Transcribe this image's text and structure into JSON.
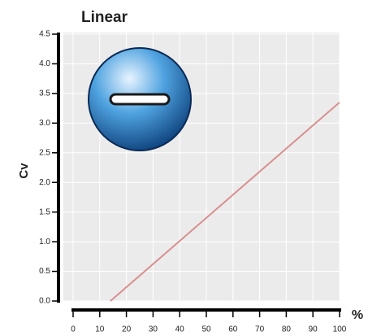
{
  "chart_data": {
    "type": "line",
    "title": "Linear",
    "y_label": "Cv",
    "x_label": "%",
    "x": [
      14,
      100
    ],
    "values": [
      0,
      3.35
    ],
    "color": "#d98f8f",
    "xlim": [
      0,
      100
    ],
    "xticks": [
      0,
      10,
      20,
      30,
      40,
      50,
      60,
      70,
      80,
      90,
      100
    ],
    "ylim": [
      0,
      4.5
    ],
    "yticks": [
      {
        "value": 0,
        "label": "0.0"
      },
      {
        "value": 0.5,
        "label": "0.5"
      },
      {
        "value": 1,
        "label": "1.0"
      },
      {
        "value": 1.5,
        "label": "1.5"
      },
      {
        "value": 2,
        "label": "2.0"
      },
      {
        "value": 2.5,
        "label": "2.5"
      },
      {
        "value": 3,
        "label": "3.0"
      },
      {
        "value": 3.5,
        "label": "3.5"
      },
      {
        "value": 4,
        "label": "4.0"
      },
      {
        "value": 4.5,
        "label": "4.5"
      }
    ],
    "grid": true
  }
}
